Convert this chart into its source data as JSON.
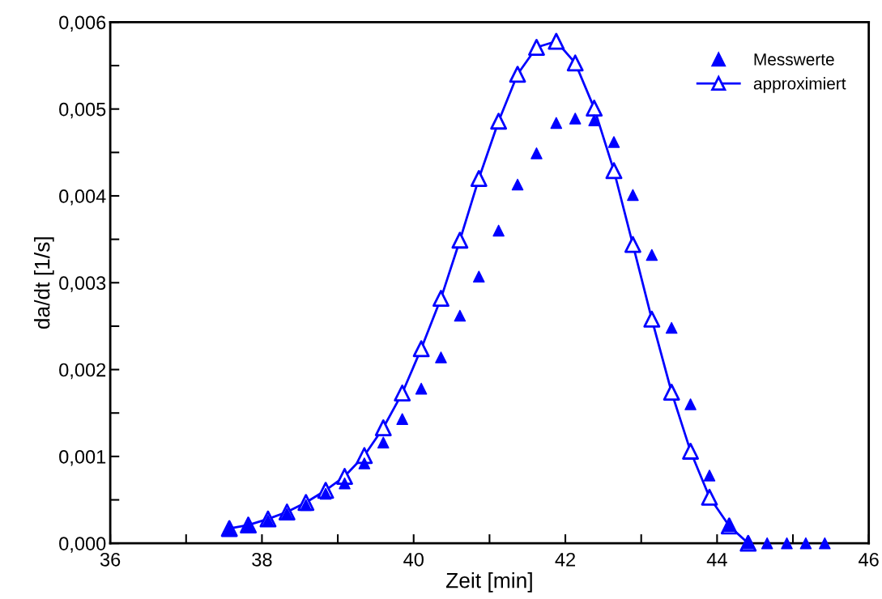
{
  "chart_data": {
    "type": "scatter",
    "xlabel": "Zeit [min]",
    "ylabel": "da/dt [1/s]",
    "x": [
      37.57,
      37.82,
      38.08,
      38.33,
      38.58,
      38.84,
      39.09,
      39.35,
      39.6,
      39.85,
      40.1,
      40.36,
      40.61,
      40.86,
      41.12,
      41.37,
      41.62,
      41.88,
      42.13,
      42.38,
      42.64,
      42.89,
      43.14,
      43.4,
      43.65,
      43.9,
      44.16,
      44.41,
      44.66,
      44.92,
      45.17,
      45.42
    ],
    "series": [
      {
        "name": "Messwerte",
        "color": "#0000ff",
        "marker": "triangle",
        "values": [
          0.00016,
          0.0002,
          0.00026,
          0.00034,
          0.00044,
          0.00057,
          0.00069,
          0.00092,
          0.00116,
          0.00143,
          0.00178,
          0.00214,
          0.00262,
          0.00307,
          0.0036,
          0.00413,
          0.00449,
          0.00484,
          0.00489,
          0.00487,
          0.00462,
          0.00401,
          0.00332,
          0.00248,
          0.0016,
          0.00078,
          0.0002,
          0,
          0,
          0,
          0,
          0
        ]
      },
      {
        "name": "approximiert",
        "type": "line",
        "color": "#0000ff",
        "marker": "triangle",
        "line_style": "solid",
        "values": [
          0.00017,
          0.00021,
          0.00028,
          0.00036,
          0.00047,
          0.00061,
          0.00077,
          0.00101,
          0.00133,
          0.00173,
          0.00224,
          0.00282,
          0.00349,
          0.0042,
          0.00486,
          0.0054,
          0.00571,
          0.00578,
          0.00553,
          0.00501,
          0.00429,
          0.00344,
          0.00258,
          0.00174,
          0.00106,
          0.00053,
          0.0002,
          0,
          null,
          null,
          null,
          null
        ]
      }
    ],
    "xlim": [
      36,
      46
    ],
    "xticks": [
      36,
      {
        "value": 37,
        "label": null
      },
      38,
      {
        "value": 39,
        "label": null
      },
      40,
      {
        "value": 41,
        "label": null
      },
      42,
      {
        "value": 43,
        "label": null
      },
      44,
      {
        "value": 45,
        "label": null
      },
      46
    ],
    "ylim": [
      0,
      0.006
    ],
    "yticks": [
      {
        "value": 0,
        "label": "0,000"
      },
      {
        "value": 0.0005,
        "label": null
      },
      {
        "value": 0.001,
        "label": "0,001"
      },
      {
        "value": 0.0015,
        "label": null
      },
      {
        "value": 0.002,
        "label": "0,002"
      },
      {
        "value": 0.0025,
        "label": null
      },
      {
        "value": 0.003,
        "label": "0,003"
      },
      {
        "value": 0.0035,
        "label": null
      },
      {
        "value": 0.004,
        "label": "0,004"
      },
      {
        "value": 0.0045,
        "label": null
      },
      {
        "value": 0.005,
        "label": "0,005"
      },
      {
        "value": 0.0055,
        "label": null
      },
      {
        "value": 0.006,
        "label": "0,006"
      }
    ],
    "grid": false,
    "legend": "top right"
  }
}
